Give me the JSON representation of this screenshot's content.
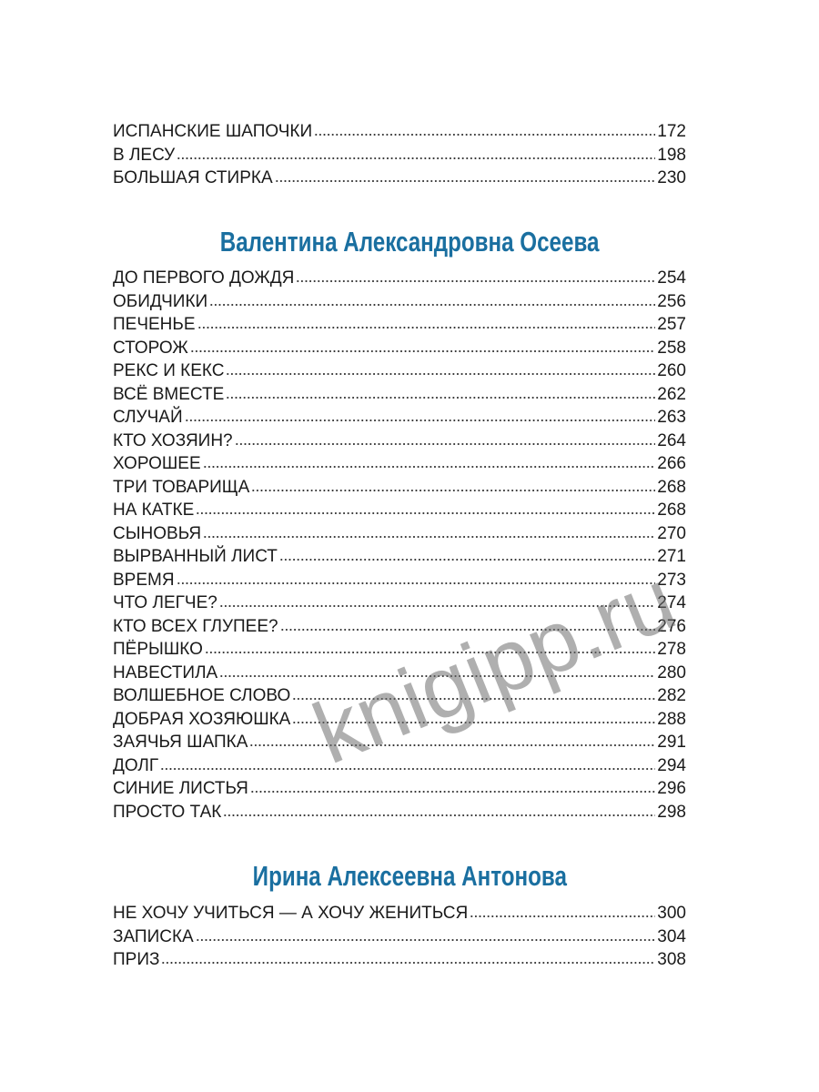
{
  "sections": [
    {
      "author": "",
      "entries": [
        {
          "title": "ИСПАНСКИЕ ШАПОЧКИ",
          "page": "172"
        },
        {
          "title": "В ЛЕСУ",
          "page": "198"
        },
        {
          "title": "БОЛЬШАЯ СТИРКА",
          "page": "230"
        }
      ]
    },
    {
      "author": "Валентина Александровна Осеева",
      "entries": [
        {
          "title": "ДО ПЕРВОГО ДОЖДЯ",
          "page": "254"
        },
        {
          "title": "ОБИДЧИКИ",
          "page": "256"
        },
        {
          "title": "ПЕЧЕНЬЕ",
          "page": "257"
        },
        {
          "title": "СТОРОЖ",
          "page": "258"
        },
        {
          "title": "РЕКС И КЕКС",
          "page": "260"
        },
        {
          "title": "ВСЁ ВМЕСТЕ",
          "page": "262"
        },
        {
          "title": "СЛУЧАЙ",
          "page": "263"
        },
        {
          "title": "КТО ХОЗЯИН?",
          "page": "264"
        },
        {
          "title": "ХОРОШЕЕ",
          "page": "266"
        },
        {
          "title": "ТРИ ТОВАРИЩА",
          "page": "268"
        },
        {
          "title": "НА КАТКЕ",
          "page": "268"
        },
        {
          "title": "СЫНОВЬЯ",
          "page": "270"
        },
        {
          "title": "ВЫРВАННЫЙ ЛИСТ",
          "page": "271"
        },
        {
          "title": "ВРЕМЯ",
          "page": "273"
        },
        {
          "title": "ЧТО ЛЕГЧЕ?",
          "page": "274"
        },
        {
          "title": "КТО ВСЕХ ГЛУПЕЕ?",
          "page": "276"
        },
        {
          "title": "ПЁРЫШКО",
          "page": "278"
        },
        {
          "title": "НАВЕСТИЛА",
          "page": "280"
        },
        {
          "title": "ВОЛШЕБНОЕ СЛОВО",
          "page": "282"
        },
        {
          "title": "ДОБРАЯ ХОЗЯЮШКА",
          "page": "288"
        },
        {
          "title": "ЗАЯЧЬЯ ШАПКА",
          "page": "291"
        },
        {
          "title": "ДОЛГ",
          "page": "294"
        },
        {
          "title": "СИНИЕ ЛИСТЬЯ",
          "page": "296"
        },
        {
          "title": "ПРОСТО ТАК",
          "page": "298"
        }
      ]
    },
    {
      "author": "Ирина Алексеевна Антонова",
      "entries": [
        {
          "title": "НЕ ХОЧУ УЧИТЬСЯ — А ХОЧУ ЖЕНИТЬСЯ",
          "page": "300"
        },
        {
          "title": "ЗАПИСКА",
          "page": "304"
        },
        {
          "title": "ПРИЗ",
          "page": "308"
        }
      ]
    }
  ],
  "watermark": "knigipp.ru",
  "colors": {
    "heading": "#1a6fa0",
    "text": "#1a1a1a"
  }
}
